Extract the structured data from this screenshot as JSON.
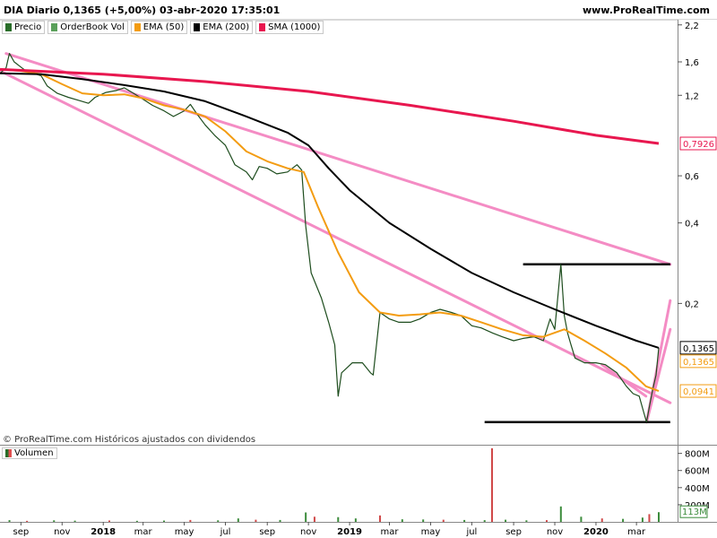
{
  "header": {
    "title": "DIA Diario 0,1365 (+5,00%) 03-abr-2020 17:35:01",
    "site": "www.ProRealTime.com"
  },
  "legend": [
    {
      "label": "Precio",
      "color": "#2a6e2a"
    },
    {
      "label": "OrderBook Vol",
      "color": "#5aa05a"
    },
    {
      "label": "EMA (50)",
      "color": "#f39c12"
    },
    {
      "label": "EMA (200)",
      "color": "#000000"
    },
    {
      "label": "SMA (1000)",
      "color": "#e8174f"
    }
  ],
  "credit": "© ProRealTime.com  Históricos ajustados con dividendos",
  "volume_panel": {
    "label": "Volumen",
    "tick_labels": [
      "800M",
      "600M",
      "400M",
      "200M"
    ],
    "tick_values": [
      800,
      600,
      400,
      200
    ],
    "last_label": "113M",
    "last_value": 113
  },
  "chart_data": {
    "type": "line",
    "x_range": [
      "2017-08-01",
      "2020-04-03"
    ],
    "x_tick_labels": [
      "sep",
      "nov",
      "2018",
      "mar",
      "may",
      "jul",
      "sep",
      "nov",
      "2019",
      "mar",
      "may",
      "jul",
      "sep",
      "nov",
      "2020",
      "mar"
    ],
    "x_ticks": [
      "2017-09-01",
      "2017-11-01",
      "2018-01-01",
      "2018-03-01",
      "2018-05-01",
      "2018-07-01",
      "2018-09-01",
      "2018-11-01",
      "2019-01-01",
      "2019-03-01",
      "2019-05-01",
      "2019-07-01",
      "2019-09-01",
      "2019-11-01",
      "2020-01-01",
      "2020-03-01"
    ],
    "y_scale": "log",
    "y_range": [
      0.066,
      2.3
    ],
    "y_tick_labels": [
      "2,2",
      "1,6",
      "1,2",
      "0,6",
      "0,4",
      "0,2"
    ],
    "y_ticks": [
      2.2,
      1.6,
      1.2,
      0.6,
      0.4,
      0.2
    ],
    "last_value_labels": [
      {
        "label": "0,7926",
        "value": 0.7926,
        "color": "#e8174f"
      },
      {
        "label": "0,1365",
        "value": 0.1365,
        "color": "#000000"
      },
      {
        "label": "0,1365",
        "value": 0.1365,
        "color": "#f39c12"
      },
      {
        "label": "0,0941",
        "value": 0.0941,
        "color": "#f39c12"
      }
    ],
    "series": [
      {
        "name": "Precio",
        "color": "#1e4d1e",
        "points": [
          [
            "2017-08-01",
            1.45
          ],
          [
            "2017-08-10",
            1.52
          ],
          [
            "2017-08-15",
            1.72
          ],
          [
            "2017-08-22",
            1.6
          ],
          [
            "2017-09-01",
            1.53
          ],
          [
            "2017-09-10",
            1.47
          ],
          [
            "2017-09-20",
            1.45
          ],
          [
            "2017-10-01",
            1.42
          ],
          [
            "2017-10-10",
            1.3
          ],
          [
            "2017-10-25",
            1.22
          ],
          [
            "2017-11-10",
            1.18
          ],
          [
            "2017-11-25",
            1.15
          ],
          [
            "2017-12-10",
            1.12
          ],
          [
            "2017-12-20",
            1.18
          ],
          [
            "2018-01-05",
            1.23
          ],
          [
            "2018-01-20",
            1.25
          ],
          [
            "2018-02-01",
            1.28
          ],
          [
            "2018-02-15",
            1.22
          ],
          [
            "2018-03-01",
            1.16
          ],
          [
            "2018-03-15",
            1.1
          ],
          [
            "2018-04-01",
            1.05
          ],
          [
            "2018-04-15",
            1.0
          ],
          [
            "2018-05-01",
            1.05
          ],
          [
            "2018-05-10",
            1.11
          ],
          [
            "2018-05-20",
            1.02
          ],
          [
            "2018-06-01",
            0.93
          ],
          [
            "2018-06-15",
            0.85
          ],
          [
            "2018-07-01",
            0.78
          ],
          [
            "2018-07-15",
            0.66
          ],
          [
            "2018-08-01",
            0.62
          ],
          [
            "2018-08-10",
            0.58
          ],
          [
            "2018-08-20",
            0.65
          ],
          [
            "2018-09-01",
            0.64
          ],
          [
            "2018-09-15",
            0.61
          ],
          [
            "2018-10-01",
            0.62
          ],
          [
            "2018-10-15",
            0.66
          ],
          [
            "2018-10-22",
            0.63
          ],
          [
            "2018-10-28",
            0.39
          ],
          [
            "2018-11-05",
            0.26
          ],
          [
            "2018-11-20",
            0.21
          ],
          [
            "2018-12-01",
            0.17
          ],
          [
            "2018-12-10",
            0.14
          ],
          [
            "2018-12-15",
            0.09
          ],
          [
            "2018-12-20",
            0.11
          ],
          [
            "2019-01-05",
            0.12
          ],
          [
            "2019-01-20",
            0.12
          ],
          [
            "2019-02-01",
            0.11
          ],
          [
            "2019-02-05",
            0.108
          ],
          [
            "2019-02-15",
            0.185
          ],
          [
            "2019-03-01",
            0.175
          ],
          [
            "2019-03-15",
            0.17
          ],
          [
            "2019-04-01",
            0.17
          ],
          [
            "2019-04-15",
            0.175
          ],
          [
            "2019-05-01",
            0.185
          ],
          [
            "2019-05-15",
            0.19
          ],
          [
            "2019-06-01",
            0.185
          ],
          [
            "2019-06-15",
            0.18
          ],
          [
            "2019-07-01",
            0.165
          ],
          [
            "2019-07-15",
            0.162
          ],
          [
            "2019-08-01",
            0.155
          ],
          [
            "2019-08-15",
            0.15
          ],
          [
            "2019-09-01",
            0.145
          ],
          [
            "2019-09-15",
            0.148
          ],
          [
            "2019-10-01",
            0.15
          ],
          [
            "2019-10-15",
            0.145
          ],
          [
            "2019-10-25",
            0.175
          ],
          [
            "2019-11-01",
            0.16
          ],
          [
            "2019-11-10",
            0.28
          ],
          [
            "2019-11-15",
            0.18
          ],
          [
            "2019-11-20",
            0.155
          ],
          [
            "2019-11-25",
            0.14
          ],
          [
            "2019-12-01",
            0.125
          ],
          [
            "2019-12-15",
            0.12
          ],
          [
            "2020-01-01",
            0.12
          ],
          [
            "2020-01-15",
            0.118
          ],
          [
            "2020-02-01",
            0.11
          ],
          [
            "2020-02-15",
            0.098
          ],
          [
            "2020-02-25",
            0.092
          ],
          [
            "2020-03-05",
            0.09
          ],
          [
            "2020-03-12",
            0.078
          ],
          [
            "2020-03-16",
            0.072
          ],
          [
            "2020-03-20",
            0.082
          ],
          [
            "2020-03-25",
            0.095
          ],
          [
            "2020-03-30",
            0.108
          ],
          [
            "2020-04-03",
            0.1365
          ]
        ]
      },
      {
        "name": "EMA (50)",
        "color": "#f39c12",
        "points": [
          [
            "2017-08-01",
            1.5
          ],
          [
            "2017-09-01",
            1.48
          ],
          [
            "2017-10-01",
            1.44
          ],
          [
            "2017-11-01",
            1.32
          ],
          [
            "2017-12-01",
            1.22
          ],
          [
            "2018-01-01",
            1.2
          ],
          [
            "2018-02-01",
            1.21
          ],
          [
            "2018-03-01",
            1.17
          ],
          [
            "2018-04-01",
            1.1
          ],
          [
            "2018-05-01",
            1.06
          ],
          [
            "2018-06-01",
            1.0
          ],
          [
            "2018-07-01",
            0.88
          ],
          [
            "2018-08-01",
            0.74
          ],
          [
            "2018-09-01",
            0.68
          ],
          [
            "2018-10-01",
            0.64
          ],
          [
            "2018-10-25",
            0.62
          ],
          [
            "2018-11-15",
            0.46
          ],
          [
            "2018-12-15",
            0.31
          ],
          [
            "2019-01-15",
            0.22
          ],
          [
            "2019-02-15",
            0.185
          ],
          [
            "2019-03-15",
            0.18
          ],
          [
            "2019-04-15",
            0.182
          ],
          [
            "2019-05-15",
            0.185
          ],
          [
            "2019-06-15",
            0.18
          ],
          [
            "2019-07-15",
            0.17
          ],
          [
            "2019-08-15",
            0.16
          ],
          [
            "2019-09-15",
            0.152
          ],
          [
            "2019-10-15",
            0.15
          ],
          [
            "2019-11-15",
            0.16
          ],
          [
            "2019-12-15",
            0.145
          ],
          [
            "2020-01-15",
            0.13
          ],
          [
            "2020-02-15",
            0.115
          ],
          [
            "2020-03-15",
            0.098
          ],
          [
            "2020-04-03",
            0.0941
          ]
        ]
      },
      {
        "name": "EMA (200)",
        "color": "#000000",
        "points": [
          [
            "2017-08-01",
            1.45
          ],
          [
            "2017-10-01",
            1.44
          ],
          [
            "2017-12-01",
            1.38
          ],
          [
            "2018-02-01",
            1.31
          ],
          [
            "2018-04-01",
            1.24
          ],
          [
            "2018-06-01",
            1.14
          ],
          [
            "2018-08-01",
            1.0
          ],
          [
            "2018-10-01",
            0.87
          ],
          [
            "2018-11-01",
            0.78
          ],
          [
            "2018-12-01",
            0.64
          ],
          [
            "2019-01-01",
            0.53
          ],
          [
            "2019-03-01",
            0.4
          ],
          [
            "2019-05-01",
            0.32
          ],
          [
            "2019-07-01",
            0.26
          ],
          [
            "2019-09-01",
            0.22
          ],
          [
            "2019-11-01",
            0.19
          ],
          [
            "2020-01-01",
            0.165
          ],
          [
            "2020-03-01",
            0.145
          ],
          [
            "2020-04-03",
            0.1365
          ]
        ]
      },
      {
        "name": "SMA (1000)",
        "color": "#e8174f",
        "points": [
          [
            "2017-08-01",
            1.5
          ],
          [
            "2018-01-01",
            1.44
          ],
          [
            "2018-06-01",
            1.35
          ],
          [
            "2018-11-01",
            1.24
          ],
          [
            "2019-04-01",
            1.1
          ],
          [
            "2019-09-01",
            0.96
          ],
          [
            "2020-01-01",
            0.85
          ],
          [
            "2020-04-03",
            0.7926
          ]
        ]
      }
    ],
    "drawings": [
      {
        "kind": "trendline",
        "color": "#f48cc4",
        "points": [
          [
            "2017-08-10",
            1.72
          ],
          [
            "2020-04-20",
            0.28
          ]
        ]
      },
      {
        "kind": "trendline",
        "color": "#f48cc4",
        "points": [
          [
            "2017-08-01",
            1.48
          ],
          [
            "2020-04-20",
            0.085
          ]
        ]
      },
      {
        "kind": "trendline",
        "color": "#f48cc4",
        "points": [
          [
            "2020-03-16",
            0.072
          ],
          [
            "2020-04-20",
            0.205
          ]
        ]
      },
      {
        "kind": "trendline",
        "color": "#f48cc4",
        "points": [
          [
            "2020-03-16",
            0.072
          ],
          [
            "2020-04-20",
            0.16
          ]
        ]
      },
      {
        "kind": "trendline",
        "color": "#f48cc4",
        "points": [
          [
            "2020-01-10",
            0.118
          ],
          [
            "2020-03-15",
            0.09
          ]
        ]
      },
      {
        "kind": "hline",
        "color": "#000000",
        "value": 0.28,
        "from": "2019-09-15",
        "to": "2020-04-20"
      },
      {
        "kind": "hline",
        "color": "#000000",
        "value": 0.072,
        "from": "2019-07-20",
        "to": "2020-04-20"
      }
    ],
    "volume": [
      [
        "2017-08-15",
        20
      ],
      [
        "2017-09-10",
        12
      ],
      [
        "2017-10-20",
        18
      ],
      [
        "2017-11-20",
        14
      ],
      [
        "2018-01-10",
        16
      ],
      [
        "2018-02-20",
        12
      ],
      [
        "2018-04-01",
        15
      ],
      [
        "2018-05-10",
        22
      ],
      [
        "2018-06-20",
        18
      ],
      [
        "2018-07-20",
        40
      ],
      [
        "2018-08-15",
        25
      ],
      [
        "2018-09-20",
        22
      ],
      [
        "2018-10-28",
        110
      ],
      [
        "2018-11-10",
        60
      ],
      [
        "2018-12-15",
        55
      ],
      [
        "2019-01-10",
        40
      ],
      [
        "2019-02-15",
        75
      ],
      [
        "2019-03-20",
        30
      ],
      [
        "2019-04-20",
        28
      ],
      [
        "2019-05-20",
        25
      ],
      [
        "2019-06-20",
        22
      ],
      [
        "2019-07-20",
        20
      ],
      [
        "2019-07-31",
        860
      ],
      [
        "2019-08-20",
        25
      ],
      [
        "2019-09-20",
        18
      ],
      [
        "2019-10-20",
        20
      ],
      [
        "2019-11-10",
        180
      ],
      [
        "2019-12-10",
        60
      ],
      [
        "2020-01-10",
        40
      ],
      [
        "2020-02-10",
        35
      ],
      [
        "2020-03-10",
        50
      ],
      [
        "2020-03-20",
        90
      ],
      [
        "2020-04-03",
        113
      ]
    ]
  }
}
